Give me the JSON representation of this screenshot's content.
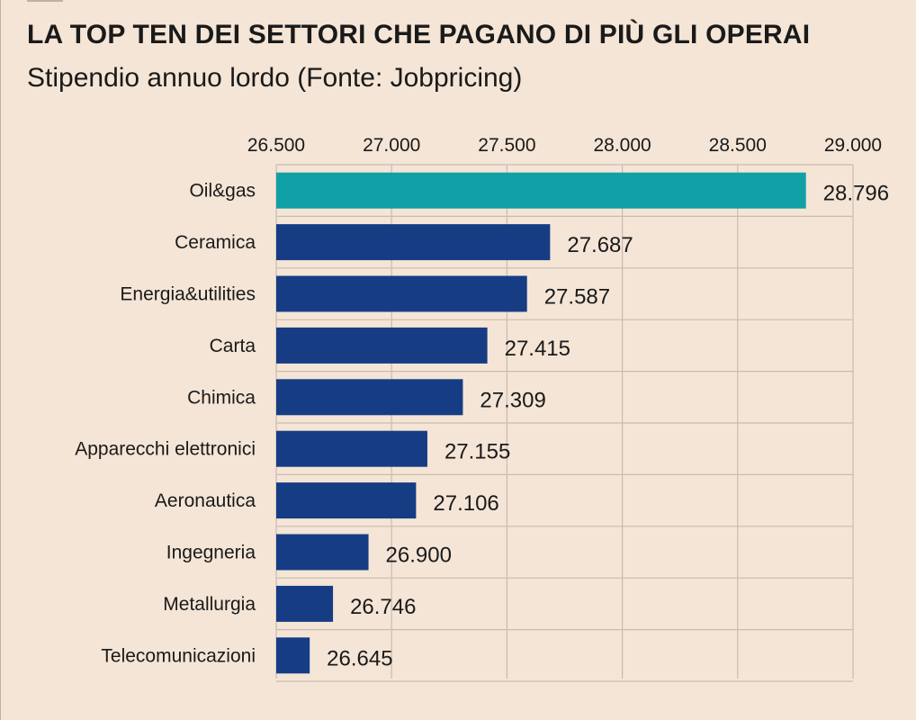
{
  "chart_data": {
    "type": "bar",
    "orientation": "horizontal",
    "title": "LA TOP TEN DEI SETTORI CHE PAGANO DI PIÙ GLI OPERAI",
    "subtitle": "Stipendio annuo lordo (Fonte: Jobpricing)",
    "categories": [
      "Oil&gas",
      "Ceramica",
      "Energia&utilities",
      "Carta",
      "Chimica",
      "Apparecchi elettronici",
      "Aeronautica",
      "Ingegneria",
      "Metallurgia",
      "Telecomunicazioni"
    ],
    "values": [
      28796,
      27687,
      27587,
      27415,
      27309,
      27155,
      27106,
      26900,
      26746,
      26645
    ],
    "value_labels": [
      "28.796",
      "27.687",
      "27.587",
      "27.415",
      "27.309",
      "27.155",
      "27.106",
      "26.900",
      "26.746",
      "26.645"
    ],
    "xlim": [
      26500,
      29000
    ],
    "xticks": [
      26500,
      27000,
      27500,
      28000,
      28500,
      29000
    ],
    "xtick_labels": [
      "26.500",
      "27.000",
      "27.500",
      "28.000",
      "28.500",
      "29.000"
    ],
    "xaxis_position": "top",
    "grid": true,
    "colors": {
      "highlight": "#11a0a6",
      "bar": "#163c84",
      "grid": "#c9bcae",
      "background": "#f4e5d6"
    }
  }
}
